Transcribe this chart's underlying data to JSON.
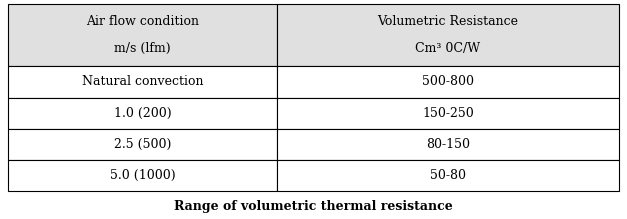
{
  "title": "Range of volumetric thermal resistance",
  "col1_header_line1": "Air flow condition",
  "col1_header_line2": "m/s (lfm)",
  "col2_header_line1": "Volumetric Resistance",
  "col2_header_line2": "Cm³ 0C/W",
  "rows": [
    [
      "Natural convection",
      "500-800"
    ],
    [
      "1.0 (200)",
      "150-250"
    ],
    [
      "2.5 (500)",
      "80-150"
    ],
    [
      "5.0 (1000)",
      "50-80"
    ]
  ],
  "header_bg": "#e0e0e0",
  "body_bg": "#ffffff",
  "border_color": "#000000",
  "text_color": "#000000",
  "title_fontsize": 9,
  "header_fontsize": 9,
  "body_fontsize": 9,
  "fig_width": 6.27,
  "fig_height": 2.19,
  "col_split": 0.44
}
